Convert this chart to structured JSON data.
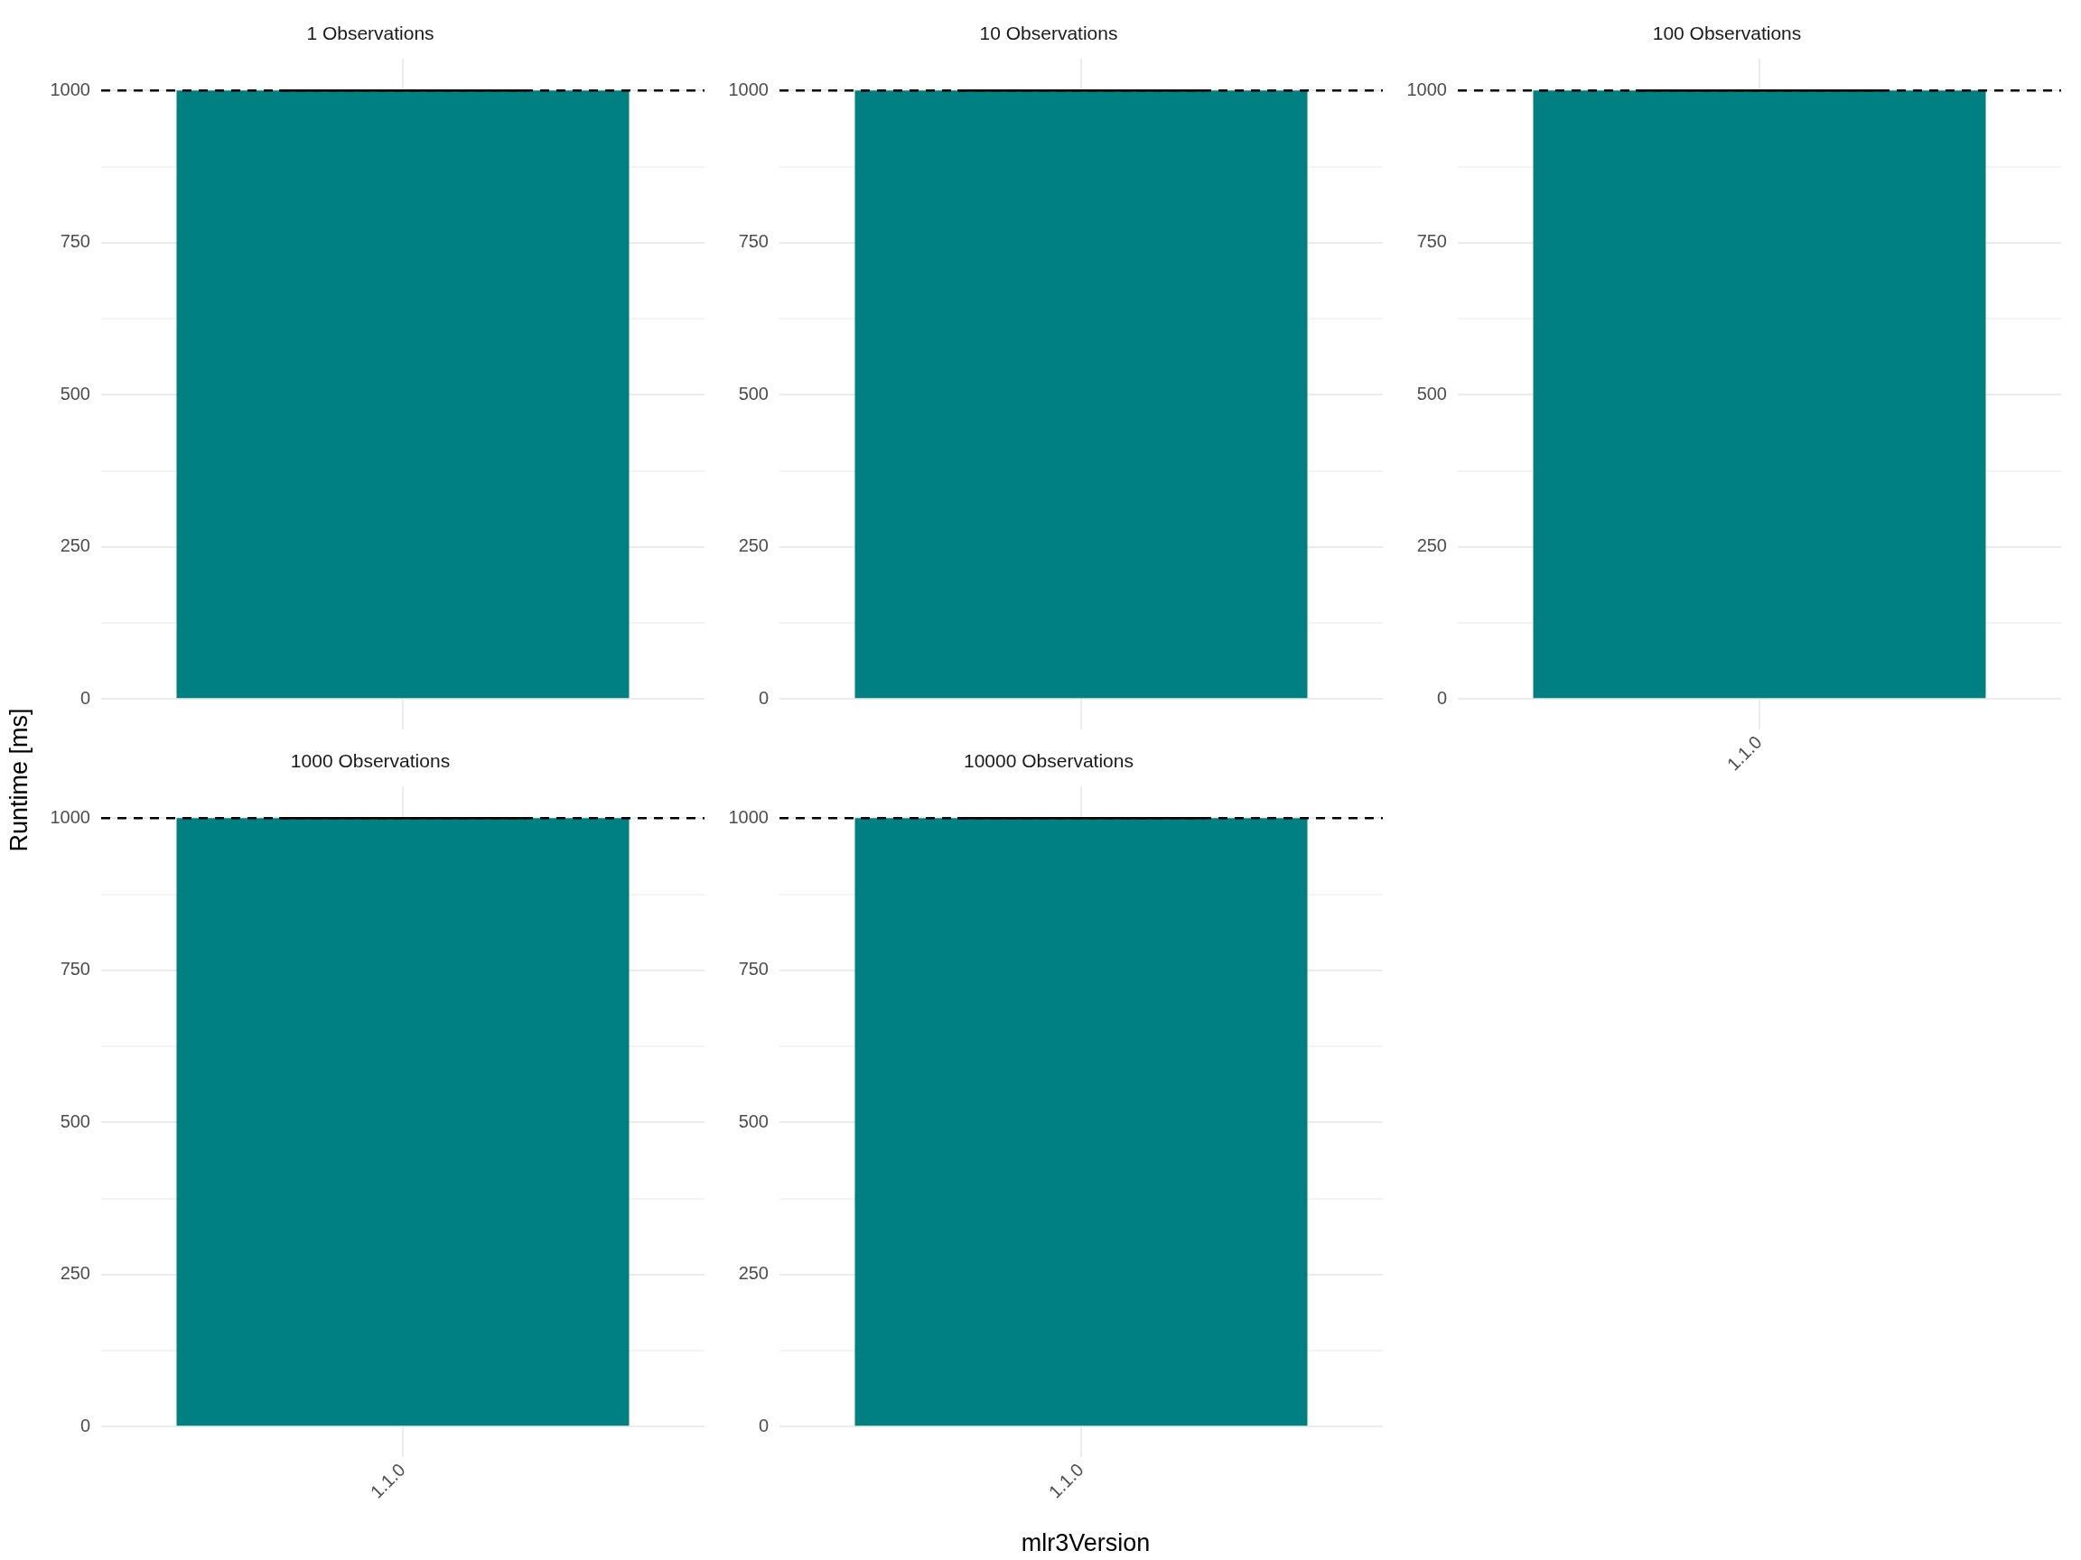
{
  "chart_data": [
    {
      "type": "bar",
      "title": "1 Observations",
      "ylabel": "Runtime [ms]",
      "categories": [
        null
      ],
      "values": [
        1000
      ],
      "errors": [
        0
      ],
      "color": "#008080",
      "ylim": [
        -50,
        1052
      ],
      "yticks": [
        0,
        {
          "value": 125,
          "label": null
        },
        250,
        {
          "value": 375,
          "label": null
        },
        500,
        {
          "value": 625,
          "label": null
        },
        750,
        {
          "value": 875,
          "label": null
        },
        1000
      ],
      "grid": true,
      "tick_labels": "y",
      "ref_lines": [
        {
          "axis": "y",
          "value": 1000,
          "line_style": "dashed",
          "color": "#000000"
        }
      ]
    },
    {
      "type": "bar",
      "title": "10 Observations",
      "categories": [
        null
      ],
      "values": [
        1000
      ],
      "errors": [
        0
      ],
      "color": "#008080",
      "ylim": [
        -50,
        1052
      ],
      "yticks": [
        0,
        {
          "value": 125,
          "label": null
        },
        250,
        {
          "value": 375,
          "label": null
        },
        500,
        {
          "value": 625,
          "label": null
        },
        750,
        {
          "value": 875,
          "label": null
        },
        1000
      ],
      "grid": true,
      "tick_labels": "y",
      "ref_lines": [
        {
          "axis": "y",
          "value": 1000,
          "line_style": "dashed",
          "color": "#000000"
        }
      ]
    },
    {
      "type": "bar",
      "title": "100 Observations",
      "categories": [
        "1.1.0"
      ],
      "values": [
        1000
      ],
      "errors": [
        0
      ],
      "color": "#008080",
      "ylim": [
        -50,
        1052
      ],
      "yticks": [
        0,
        {
          "value": 125,
          "label": null
        },
        250,
        {
          "value": 375,
          "label": null
        },
        500,
        {
          "value": 625,
          "label": null
        },
        750,
        {
          "value": 875,
          "label": null
        },
        1000
      ],
      "grid": true,
      "ref_lines": [
        {
          "axis": "y",
          "value": 1000,
          "line_style": "dashed",
          "color": "#000000"
        }
      ]
    },
    {
      "type": "bar",
      "title": "1000 Observations",
      "categories": [
        "1.1.0"
      ],
      "values": [
        1000
      ],
      "errors": [
        0
      ],
      "color": "#008080",
      "ylim": [
        -50,
        1052
      ],
      "yticks": [
        0,
        {
          "value": 125,
          "label": null
        },
        250,
        {
          "value": 375,
          "label": null
        },
        500,
        {
          "value": 625,
          "label": null
        },
        750,
        {
          "value": 875,
          "label": null
        },
        1000
      ],
      "grid": true,
      "ref_lines": [
        {
          "axis": "y",
          "value": 1000,
          "line_style": "dashed",
          "color": "#000000"
        }
      ]
    },
    {
      "type": "bar",
      "title": "10000 Observations",
      "xlabel": "mlr3Version",
      "categories": [
        "1.1.0"
      ],
      "values": [
        1000
      ],
      "errors": [
        0
      ],
      "color": "#008080",
      "ylim": [
        -50,
        1052
      ],
      "yticks": [
        0,
        {
          "value": 125,
          "label": null
        },
        250,
        {
          "value": 375,
          "label": null
        },
        500,
        {
          "value": 625,
          "label": null
        },
        750,
        {
          "value": 875,
          "label": null
        },
        1000
      ],
      "grid": true,
      "ref_lines": [
        {
          "axis": "y",
          "value": 1000,
          "line_style": "dashed",
          "color": "#000000"
        }
      ]
    }
  ]
}
